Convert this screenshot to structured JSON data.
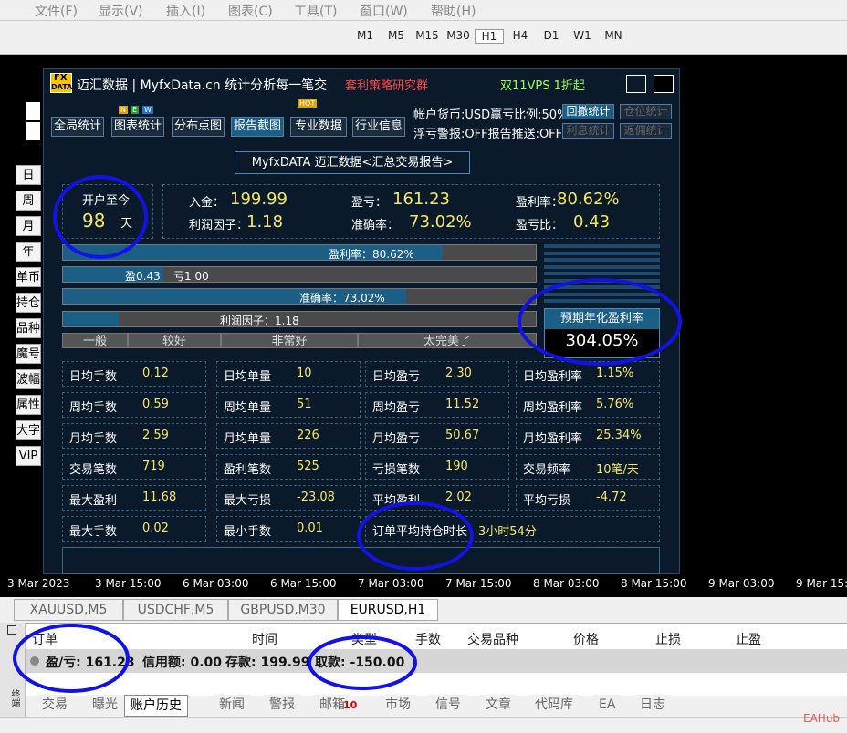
{
  "menu": [
    "文件(F)",
    "显示(V)",
    "插入(I)",
    "图表(C)",
    "工具(T)",
    "窗口(W)",
    "帮助(H)"
  ],
  "toolbar": {
    "timeframes": [
      "M1",
      "M5",
      "M15",
      "M30",
      "H1",
      "H4",
      "D1",
      "W1",
      "MN"
    ]
  },
  "panel": {
    "logo_top": "FX",
    "logo_bottom": "DATA",
    "title": "迈汇数据 | MyfxData.cn  统计分析每一笔交易",
    "group": "套利策略研究群",
    "vps": "双11VPS 1折起",
    "tabs": [
      {
        "label": "全局统计"
      },
      {
        "label": "图表统计",
        "badge": [
          "N",
          "E",
          "W"
        ]
      },
      {
        "label": "分布点图"
      },
      {
        "label": "报告截图"
      },
      {
        "label": "专业数据",
        "badge": [
          "HOT"
        ]
      },
      {
        "label": "行业信息"
      }
    ],
    "info": [
      {
        "text": "帐户货币:USD赢亏比例:50%",
        "buttons": [
          "回撤统计",
          "仓位统计"
        ]
      },
      {
        "text": "浮亏警报:OFF报告推送:OFF",
        "buttons": [
          "利息统计",
          "返佣统计"
        ]
      }
    ],
    "report_title": "MyfxDATA 迈汇数据<汇总交易报告>",
    "open": {
      "label": "开户至今",
      "value": "98",
      "unit": "天"
    },
    "stats": [
      {
        "label": "入金：",
        "value": "199.99"
      },
      {
        "label": "盈亏：",
        "value": "161.23"
      },
      {
        "label": "盈利率：",
        "value": "80.62%"
      },
      {
        "label": "利润因子：",
        "value": "1.18"
      },
      {
        "label": "准确率：",
        "value": "73.02%"
      },
      {
        "label": "盈亏比：",
        "value": "0.43"
      }
    ],
    "bars": {
      "profit_rate": "盈利率：80.62%",
      "win": "盈0.43",
      "loss": "亏1.00",
      "accuracy": "准确率：73.02%",
      "profit_factor": "利润因子：1.18"
    },
    "rating": [
      "一般",
      "较好",
      "非常好",
      "太完美了"
    ],
    "forecast": {
      "label": "预期年化盈利率",
      "value": "304.05%"
    },
    "grid": [
      [
        [
          "日均手数",
          "0.12"
        ],
        [
          "日均单量",
          "10"
        ],
        [
          "日均盈亏",
          "2.30"
        ],
        [
          "日均盈利率",
          "1.15%"
        ]
      ],
      [
        [
          "周均手数",
          "0.59"
        ],
        [
          "周均单量",
          "51"
        ],
        [
          "周均盈亏",
          "11.52"
        ],
        [
          "周均盈利率",
          "5.76%"
        ]
      ],
      [
        [
          "月均手数",
          "2.59"
        ],
        [
          "月均单量",
          "226"
        ],
        [
          "月均盈亏",
          "50.67"
        ],
        [
          "月均盈利率",
          "25.34%"
        ]
      ],
      [
        [
          "交易笔数",
          "719"
        ],
        [
          "盈利笔数",
          "525"
        ],
        [
          "亏损笔数",
          "190"
        ],
        [
          "交易频率",
          "10笔/天"
        ]
      ],
      [
        [
          "最大盈利",
          "11.68"
        ],
        [
          "最大亏损",
          "-23.08"
        ],
        [
          "平均盈利",
          "2.02"
        ],
        [
          "平均亏损",
          "-4.72"
        ]
      ],
      [
        [
          "最大手数",
          "0.02"
        ],
        [
          "最小手数",
          "0.01"
        ],
        [
          "订单平均持仓时长",
          "3小时54分"
        ]
      ]
    ]
  },
  "side_buttons": [
    "日",
    "周",
    "月",
    "年",
    "单币",
    "持仓",
    "品种",
    "魔号",
    "波幅",
    "属性",
    "大字",
    "VIP"
  ],
  "time_axis": [
    "3 Mar 2023",
    "3 Mar 15:00",
    "6 Mar 03:00",
    "6 Mar 15:00",
    "7 Mar 03:00",
    "7 Mar 15:00",
    "8 Mar 03:00",
    "8 Mar 15:00",
    "9 Mar 03:00",
    "9 Mar 15:00"
  ],
  "symbol_tabs": [
    "XAUUSD,M5",
    "USDCHF,M5",
    "GBPUSD,M30",
    "EURUSD,H1"
  ],
  "terminal": {
    "headers": [
      "订单",
      "时间",
      "类型",
      "手数",
      "交易品种",
      "价格",
      "止损",
      "止盈"
    ],
    "balance": [
      "盈/亏: 161.23",
      "信用额: 0.00",
      "存款: 199.99",
      "取款: -150.00"
    ],
    "side_label": "终端",
    "tabs": [
      "交易",
      "曝光",
      "账户历史",
      "新闻",
      "警报",
      "邮箱",
      "市场",
      "信号",
      "文章",
      "代码库",
      "EA",
      "日志"
    ],
    "mail_count": "10",
    "watermark": "EAHub"
  }
}
